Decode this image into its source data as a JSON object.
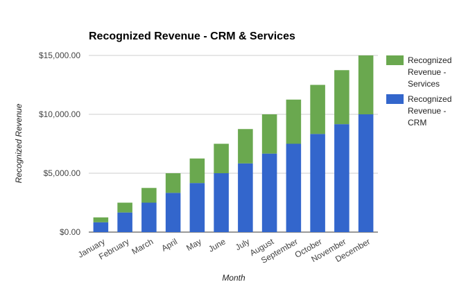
{
  "chart_data": {
    "type": "bar",
    "stacked": true,
    "title": "Recognized Revenue - CRM & Services",
    "xlabel": "Month",
    "ylabel": "Recognized Revenue",
    "categories": [
      "January",
      "February",
      "March",
      "April",
      "May",
      "June",
      "July",
      "August",
      "September",
      "October",
      "November",
      "December"
    ],
    "series": [
      {
        "name": "Recognized Revenue - CRM",
        "color": "#3366cc",
        "values": [
          833.33,
          1666.67,
          2500.0,
          3333.33,
          4166.67,
          5000.0,
          5833.33,
          6666.67,
          7500.0,
          8333.33,
          9166.67,
          10000.0
        ]
      },
      {
        "name": "Recognized Revenue - Services",
        "color": "#6aa84f",
        "values": [
          416.67,
          833.33,
          1250.0,
          1666.67,
          2083.33,
          2500.0,
          2916.67,
          3333.33,
          3750.0,
          4166.67,
          4583.33,
          5000.0
        ]
      }
    ],
    "ylim": [
      0,
      15000
    ],
    "yticks": [
      0,
      5000,
      10000,
      15000
    ],
    "ytick_labels": [
      "$0.00",
      "$5,000.00",
      "$10,000.00",
      "$15,000.00"
    ],
    "grid": true,
    "legend": {
      "placement": "right",
      "entries": [
        {
          "series": "Recognized Revenue - Services",
          "lines": [
            "Recognized",
            "Revenue -",
            "Services"
          ],
          "color": "#6aa84f"
        },
        {
          "series": "Recognized Revenue - CRM",
          "lines": [
            "Recognized",
            "Revenue -",
            "CRM"
          ],
          "color": "#3366cc"
        }
      ]
    }
  }
}
